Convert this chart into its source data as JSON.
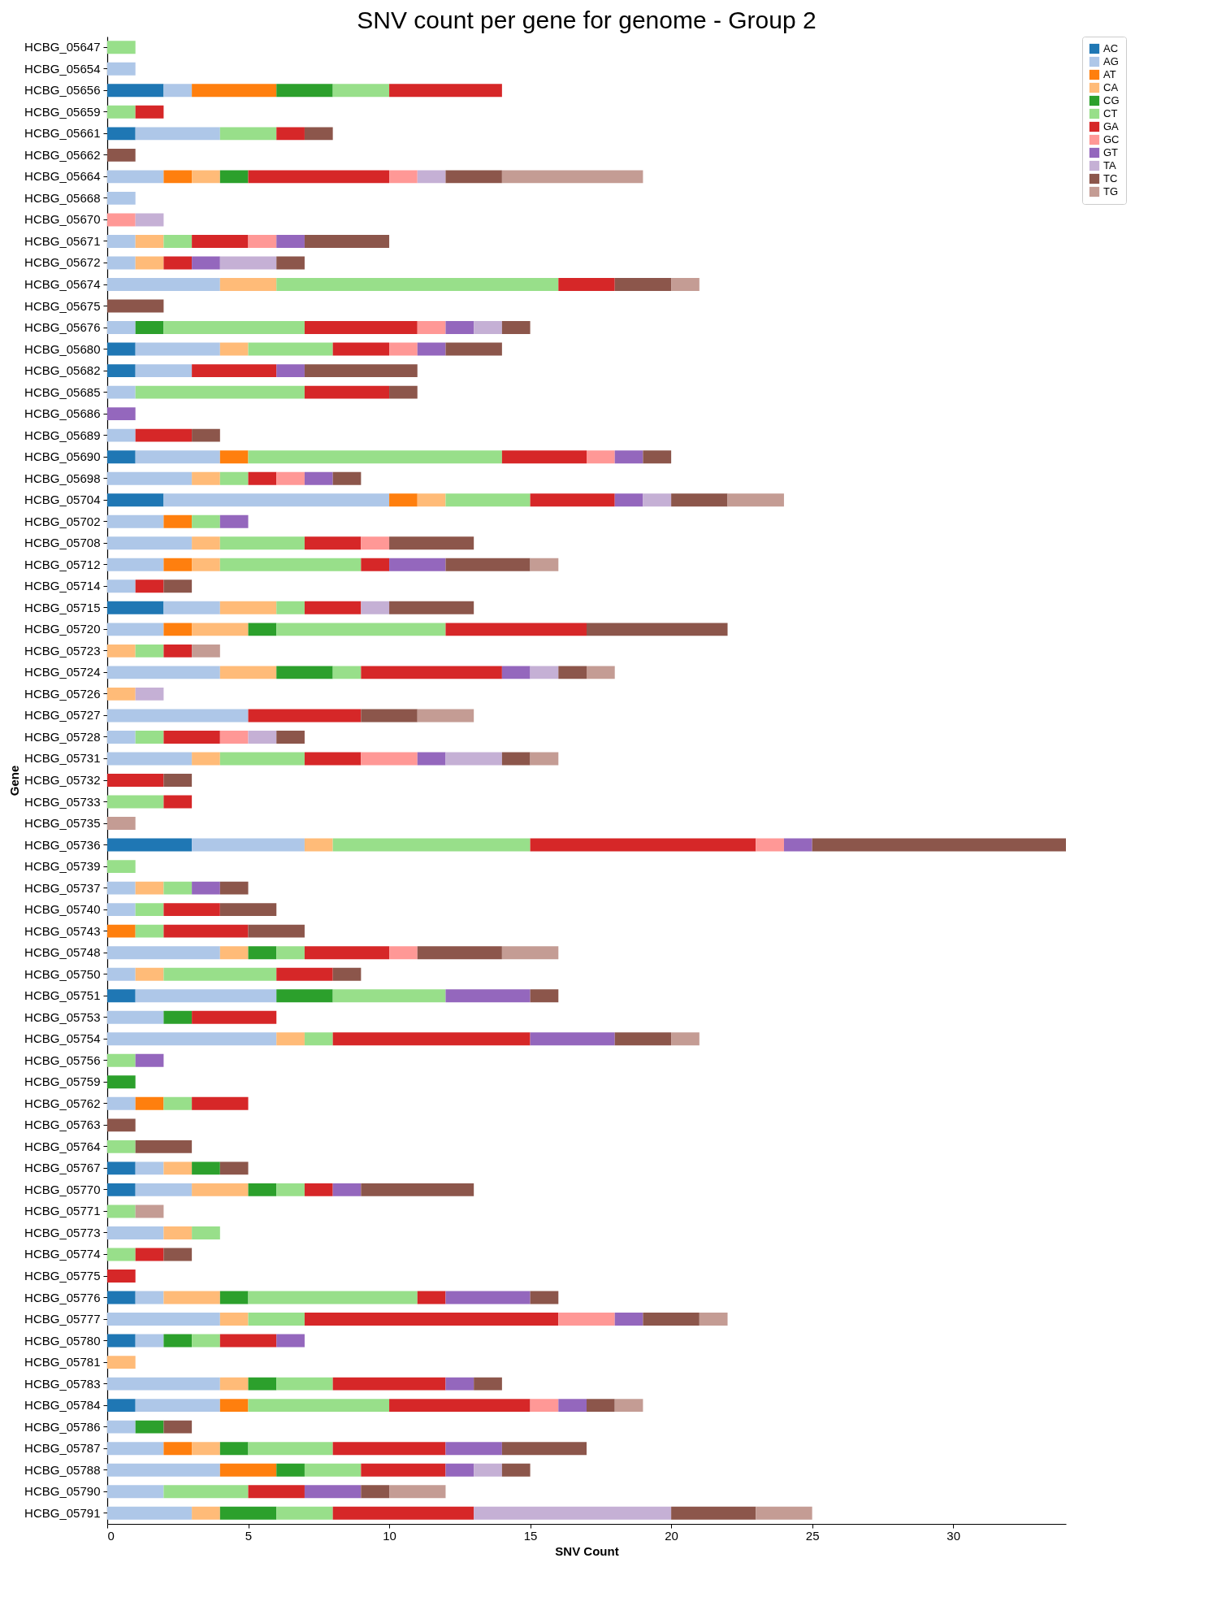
{
  "chart_data": {
    "type": "bar",
    "orientation": "horizontal",
    "stacked": true,
    "title": "SNV count per gene for genome - Group 2",
    "xlabel": "SNV Count",
    "ylabel": "Gene",
    "legend": "top right",
    "grid": false,
    "xlim": [
      0,
      34
    ],
    "xticks": [
      0,
      5,
      10,
      15,
      20,
      25,
      30
    ],
    "categories": [
      "HCBG_05647",
      "HCBG_05654",
      "HCBG_05656",
      "HCBG_05659",
      "HCBG_05661",
      "HCBG_05662",
      "HCBG_05664",
      "HCBG_05668",
      "HCBG_05670",
      "HCBG_05671",
      "HCBG_05672",
      "HCBG_05674",
      "HCBG_05675",
      "HCBG_05676",
      "HCBG_05680",
      "HCBG_05682",
      "HCBG_05685",
      "HCBG_05686",
      "HCBG_05689",
      "HCBG_05690",
      "HCBG_05698",
      "HCBG_05704",
      "HCBG_05702",
      "HCBG_05708",
      "HCBG_05712",
      "HCBG_05714",
      "HCBG_05715",
      "HCBG_05720",
      "HCBG_05723",
      "HCBG_05724",
      "HCBG_05726",
      "HCBG_05727",
      "HCBG_05728",
      "HCBG_05731",
      "HCBG_05732",
      "HCBG_05733",
      "HCBG_05735",
      "HCBG_05736",
      "HCBG_05739",
      "HCBG_05737",
      "HCBG_05740",
      "HCBG_05743",
      "HCBG_05748",
      "HCBG_05750",
      "HCBG_05751",
      "HCBG_05753",
      "HCBG_05754",
      "HCBG_05756",
      "HCBG_05759",
      "HCBG_05762",
      "HCBG_05763",
      "HCBG_05764",
      "HCBG_05767",
      "HCBG_05770",
      "HCBG_05771",
      "HCBG_05773",
      "HCBG_05774",
      "HCBG_05775",
      "HCBG_05776",
      "HCBG_05777",
      "HCBG_05780",
      "HCBG_05781",
      "HCBG_05783",
      "HCBG_05784",
      "HCBG_05786",
      "HCBG_05787",
      "HCBG_05788",
      "HCBG_05790",
      "HCBG_05791"
    ],
    "series": [
      {
        "name": "AC",
        "color": "#1f77b4",
        "values": [
          null,
          null,
          2,
          null,
          1,
          null,
          null,
          null,
          null,
          null,
          null,
          null,
          null,
          null,
          1,
          1,
          null,
          null,
          null,
          1,
          null,
          2,
          null,
          null,
          null,
          null,
          2,
          null,
          null,
          null,
          null,
          null,
          null,
          null,
          null,
          null,
          null,
          3,
          null,
          null,
          null,
          null,
          null,
          null,
          1,
          null,
          null,
          null,
          null,
          null,
          null,
          null,
          1,
          1,
          null,
          null,
          null,
          null,
          1,
          null,
          1,
          null,
          null,
          1,
          null,
          null,
          null,
          null,
          null
        ]
      },
      {
        "name": "AG",
        "color": "#aec7e8",
        "values": [
          null,
          1,
          1,
          null,
          3,
          null,
          2,
          1,
          null,
          1,
          1,
          4,
          null,
          1,
          3,
          2,
          1,
          null,
          1,
          3,
          3,
          8,
          2,
          3,
          2,
          1,
          2,
          2,
          null,
          4,
          null,
          5,
          1,
          3,
          null,
          null,
          null,
          4,
          null,
          1,
          1,
          null,
          4,
          1,
          5,
          2,
          6,
          null,
          null,
          1,
          null,
          null,
          1,
          2,
          null,
          2,
          null,
          null,
          1,
          4,
          1,
          null,
          4,
          3,
          1,
          2,
          4,
          2,
          3
        ]
      },
      {
        "name": "AT",
        "color": "#ff7f0e",
        "values": [
          null,
          null,
          3,
          null,
          null,
          null,
          1,
          null,
          null,
          null,
          null,
          null,
          null,
          null,
          null,
          null,
          null,
          null,
          null,
          1,
          null,
          1,
          1,
          null,
          1,
          null,
          null,
          1,
          null,
          null,
          null,
          null,
          null,
          null,
          null,
          null,
          null,
          null,
          null,
          null,
          null,
          1,
          null,
          null,
          null,
          null,
          null,
          null,
          null,
          1,
          null,
          null,
          null,
          null,
          null,
          null,
          null,
          null,
          null,
          null,
          null,
          null,
          null,
          1,
          null,
          1,
          2,
          null,
          null
        ]
      },
      {
        "name": "CA",
        "color": "#ffbb78",
        "values": [
          null,
          null,
          null,
          null,
          null,
          null,
          1,
          null,
          null,
          1,
          1,
          2,
          null,
          null,
          1,
          null,
          null,
          null,
          null,
          null,
          1,
          1,
          null,
          1,
          1,
          null,
          2,
          2,
          1,
          2,
          1,
          null,
          null,
          1,
          null,
          null,
          null,
          1,
          null,
          1,
          null,
          null,
          1,
          1,
          null,
          null,
          1,
          null,
          null,
          null,
          null,
          null,
          1,
          2,
          null,
          1,
          null,
          null,
          2,
          1,
          null,
          1,
          1,
          null,
          null,
          1,
          null,
          null,
          1
        ]
      },
      {
        "name": "CG",
        "color": "#2ca02c",
        "values": [
          null,
          null,
          2,
          null,
          null,
          null,
          1,
          null,
          null,
          null,
          null,
          null,
          null,
          1,
          null,
          null,
          null,
          null,
          null,
          null,
          null,
          null,
          null,
          null,
          null,
          null,
          null,
          1,
          null,
          2,
          null,
          null,
          null,
          null,
          null,
          null,
          null,
          null,
          null,
          null,
          null,
          null,
          1,
          null,
          2,
          1,
          null,
          null,
          1,
          null,
          null,
          null,
          1,
          1,
          null,
          null,
          null,
          null,
          1,
          null,
          1,
          null,
          1,
          null,
          1,
          1,
          1,
          null,
          2
        ]
      },
      {
        "name": "CT",
        "color": "#98df8a",
        "values": [
          1,
          null,
          2,
          1,
          2,
          null,
          null,
          null,
          null,
          1,
          null,
          10,
          null,
          5,
          3,
          null,
          6,
          null,
          null,
          9,
          1,
          3,
          1,
          3,
          5,
          null,
          1,
          6,
          1,
          1,
          null,
          null,
          1,
          3,
          null,
          2,
          null,
          7,
          1,
          1,
          1,
          1,
          1,
          4,
          4,
          null,
          1,
          1,
          null,
          1,
          null,
          1,
          null,
          1,
          1,
          1,
          1,
          null,
          6,
          2,
          1,
          null,
          2,
          5,
          null,
          3,
          2,
          3,
          2
        ]
      },
      {
        "name": "GA",
        "color": "#d62728",
        "values": [
          null,
          null,
          4,
          1,
          1,
          null,
          5,
          null,
          null,
          2,
          1,
          2,
          null,
          4,
          2,
          3,
          3,
          null,
          2,
          3,
          1,
          3,
          null,
          2,
          1,
          1,
          2,
          5,
          1,
          5,
          null,
          4,
          2,
          2,
          2,
          1,
          null,
          8,
          null,
          null,
          2,
          3,
          3,
          2,
          null,
          3,
          7,
          null,
          null,
          2,
          null,
          null,
          null,
          1,
          null,
          null,
          1,
          1,
          1,
          9,
          2,
          null,
          4,
          5,
          null,
          4,
          3,
          2,
          5
        ]
      },
      {
        "name": "GC",
        "color": "#ff9896",
        "values": [
          null,
          null,
          null,
          null,
          null,
          null,
          1,
          null,
          1,
          1,
          null,
          null,
          null,
          1,
          1,
          null,
          null,
          null,
          null,
          1,
          1,
          null,
          null,
          1,
          null,
          null,
          null,
          null,
          null,
          null,
          null,
          null,
          1,
          2,
          null,
          null,
          null,
          1,
          null,
          null,
          null,
          null,
          1,
          null,
          null,
          null,
          null,
          null,
          null,
          null,
          null,
          null,
          null,
          null,
          null,
          null,
          null,
          null,
          null,
          2,
          null,
          null,
          null,
          1,
          null,
          null,
          null,
          null,
          null
        ]
      },
      {
        "name": "GT",
        "color": "#9467bd",
        "values": [
          null,
          null,
          null,
          null,
          null,
          null,
          null,
          null,
          null,
          1,
          1,
          null,
          null,
          1,
          1,
          1,
          null,
          1,
          null,
          1,
          1,
          1,
          1,
          null,
          2,
          null,
          null,
          null,
          null,
          1,
          null,
          null,
          null,
          1,
          null,
          null,
          null,
          1,
          null,
          1,
          null,
          null,
          null,
          null,
          3,
          null,
          3,
          1,
          null,
          null,
          null,
          null,
          null,
          1,
          null,
          null,
          null,
          null,
          3,
          1,
          1,
          null,
          1,
          1,
          null,
          2,
          1,
          2,
          null
        ]
      },
      {
        "name": "TA",
        "color": "#c5b0d5",
        "values": [
          null,
          null,
          null,
          null,
          null,
          null,
          1,
          null,
          1,
          null,
          2,
          null,
          null,
          1,
          null,
          null,
          null,
          null,
          null,
          null,
          null,
          1,
          null,
          null,
          null,
          null,
          1,
          null,
          null,
          1,
          1,
          null,
          1,
          2,
          null,
          null,
          null,
          null,
          null,
          null,
          null,
          null,
          null,
          null,
          null,
          null,
          null,
          null,
          null,
          null,
          null,
          null,
          null,
          null,
          null,
          null,
          null,
          null,
          null,
          null,
          null,
          null,
          null,
          null,
          null,
          null,
          1,
          null,
          7
        ]
      },
      {
        "name": "TC",
        "color": "#8c564b",
        "values": [
          null,
          null,
          null,
          null,
          1,
          1,
          2,
          null,
          null,
          3,
          1,
          2,
          2,
          1,
          2,
          4,
          1,
          null,
          1,
          1,
          1,
          2,
          null,
          3,
          3,
          1,
          3,
          5,
          null,
          1,
          null,
          2,
          1,
          1,
          1,
          null,
          null,
          9,
          null,
          1,
          2,
          2,
          3,
          1,
          1,
          null,
          2,
          null,
          null,
          null,
          1,
          2,
          1,
          4,
          null,
          null,
          1,
          null,
          1,
          2,
          null,
          null,
          1,
          1,
          1,
          3,
          1,
          1,
          3
        ]
      },
      {
        "name": "TG",
        "color": "#c49c94",
        "values": [
          null,
          null,
          null,
          null,
          null,
          null,
          5,
          null,
          null,
          null,
          null,
          1,
          null,
          null,
          null,
          null,
          null,
          null,
          null,
          null,
          null,
          2,
          null,
          null,
          1,
          null,
          null,
          null,
          1,
          1,
          null,
          2,
          null,
          1,
          null,
          null,
          1,
          null,
          null,
          null,
          null,
          null,
          2,
          null,
          null,
          null,
          1,
          null,
          null,
          null,
          null,
          null,
          null,
          null,
          1,
          null,
          null,
          null,
          null,
          1,
          null,
          null,
          null,
          1,
          null,
          null,
          null,
          2,
          2
        ]
      }
    ]
  }
}
